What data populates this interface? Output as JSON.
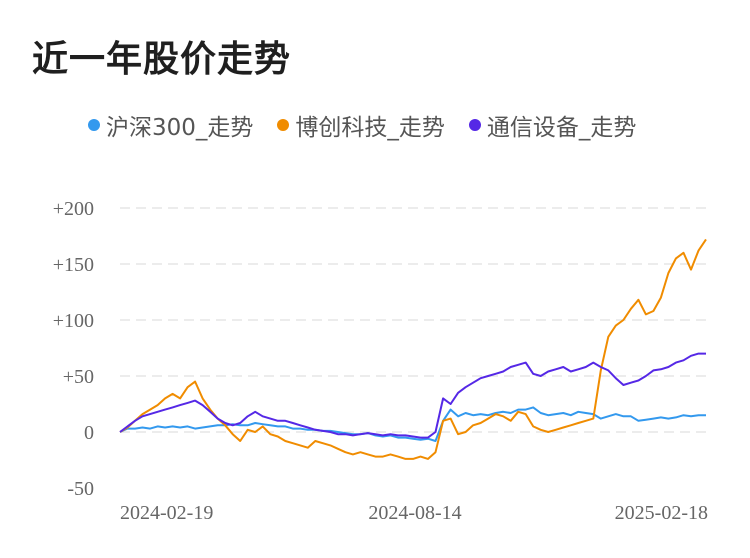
{
  "title": "近一年股价走势",
  "legend": [
    {
      "label": "沪深300_走势",
      "color": "#3399ee"
    },
    {
      "label": "博创科技_走势",
      "color": "#f08c00"
    },
    {
      "label": "通信设备_走势",
      "color": "#5528e6"
    }
  ],
  "chart_data": {
    "type": "line",
    "ylim": [
      -50,
      200
    ],
    "yticks": [
      "+200",
      "+150",
      "+100",
      "+50",
      "0",
      "-50"
    ],
    "ytick_values": [
      200,
      150,
      100,
      50,
      0,
      -50
    ],
    "xticks": [
      "2024-02-19",
      "2024-08-14",
      "2025-02-18"
    ],
    "grid": true,
    "series": [
      {
        "name": "沪深300_走势",
        "color": "#3399ee",
        "values": [
          0,
          3,
          3,
          4,
          3,
          5,
          4,
          5,
          4,
          5,
          3,
          4,
          5,
          6,
          6,
          7,
          6,
          6,
          8,
          7,
          6,
          5,
          5,
          3,
          3,
          2,
          2,
          1,
          1,
          0,
          -1,
          -2,
          -2,
          -1,
          -3,
          -4,
          -3,
          -5,
          -5,
          -6,
          -7,
          -6,
          -8,
          10,
          20,
          14,
          17,
          15,
          16,
          15,
          17,
          18,
          17,
          20,
          20,
          22,
          17,
          15,
          16,
          17,
          15,
          18,
          17,
          16,
          12,
          14,
          16,
          14,
          14,
          10,
          11,
          12,
          13,
          12,
          13,
          15,
          14,
          15,
          15
        ]
      },
      {
        "name": "博创科技_走势",
        "color": "#f08c00",
        "values": [
          0,
          4,
          10,
          16,
          20,
          24,
          30,
          34,
          30,
          40,
          45,
          30,
          20,
          12,
          6,
          -2,
          -8,
          2,
          0,
          5,
          -2,
          -4,
          -8,
          -10,
          -12,
          -14,
          -8,
          -10,
          -12,
          -15,
          -18,
          -20,
          -18,
          -20,
          -22,
          -22,
          -20,
          -22,
          -24,
          -24,
          -22,
          -24,
          -18,
          10,
          12,
          -2,
          0,
          6,
          8,
          12,
          16,
          14,
          10,
          18,
          16,
          5,
          2,
          0,
          2,
          4,
          6,
          8,
          10,
          12,
          55,
          85,
          95,
          100,
          110,
          118,
          105,
          108,
          120,
          142,
          155,
          160,
          145,
          162,
          172
        ]
      },
      {
        "name": "通信设备_走势",
        "color": "#5528e6",
        "values": [
          0,
          5,
          10,
          14,
          16,
          18,
          20,
          22,
          24,
          26,
          28,
          24,
          18,
          12,
          8,
          6,
          8,
          14,
          18,
          14,
          12,
          10,
          10,
          8,
          6,
          4,
          2,
          1,
          0,
          -2,
          -2,
          -3,
          -2,
          -1,
          -2,
          -3,
          -2,
          -3,
          -3,
          -4,
          -5,
          -5,
          0,
          30,
          25,
          35,
          40,
          44,
          48,
          50,
          52,
          54,
          58,
          60,
          62,
          52,
          50,
          54,
          56,
          58,
          54,
          56,
          58,
          62,
          58,
          55,
          48,
          42,
          44,
          46,
          50,
          55,
          56,
          58,
          62,
          64,
          68,
          70,
          70
        ]
      }
    ]
  }
}
